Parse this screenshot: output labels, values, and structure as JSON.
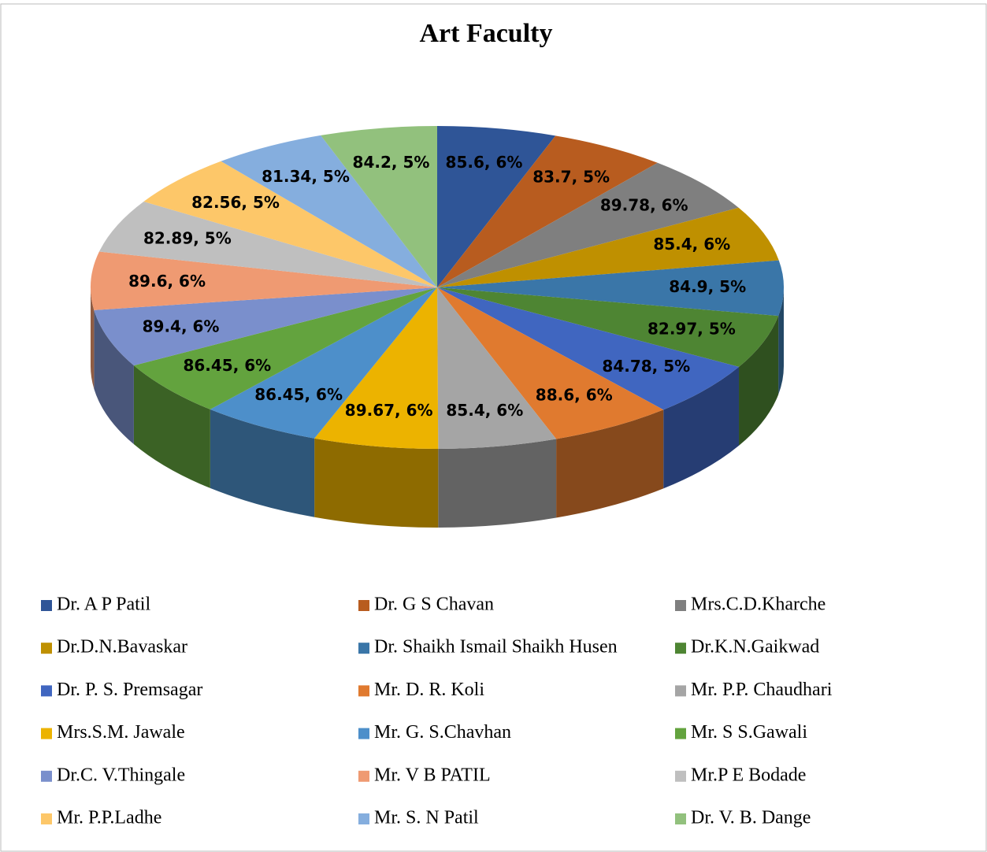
{
  "chart_data": {
    "type": "pie3d",
    "title": "Art Faculty",
    "categories": [
      "Dr. A P Patil",
      "Dr. G S Chavan",
      "Mrs.C.D.Kharche",
      "Dr.D.N.Bavaskar",
      "Dr. Shaikh Ismail Shaikh Husen",
      "Dr.K.N.Gaikwad",
      "Dr. P. S. Premsagar",
      "Mr. D. R. Koli",
      "Mr. P.P. Chaudhari",
      "Mrs.S.M. Jawale",
      "Mr. G. S.Chavhan",
      "Mr. S S.Gawali",
      "Dr.C. V.Thingale",
      "Mr. V B PATIL",
      "Mr.P E Bodade",
      "Mr. P.P.Ladhe",
      "Mr. S. N Patil",
      "Dr. V. B. Dange"
    ],
    "values": [
      85.6,
      83.7,
      89.78,
      85.4,
      84.9,
      82.97,
      84.78,
      88.6,
      85.4,
      89.67,
      86.45,
      86.45,
      89.4,
      89.6,
      82.89,
      82.56,
      81.34,
      84.2
    ],
    "value_labels": [
      "85.6, 6%",
      "83.7, 5%",
      "89.78, 6%",
      "85.4, 6%",
      "84.9, 5%",
      "82.97, 5%",
      "84.78, 5%",
      "88.6, 6%",
      "85.4, 6%",
      "89.67, 6%",
      "86.45, 6%",
      "86.45, 6%",
      "89.4, 6%",
      "89.6, 6%",
      "82.89, 5%",
      "82.56, 5%",
      "81.34, 5%",
      "84.2, 5%"
    ],
    "colors": [
      "#2f5597",
      "#b85c1f",
      "#7f7f7f",
      "#bf9000",
      "#3a76a8",
      "#4e8533",
      "#4066c0",
      "#e07a2f",
      "#a5a5a5",
      "#ecb300",
      "#4d8fca",
      "#63a33e",
      "#7a8fcc",
      "#ef9a72",
      "#bfbfbf",
      "#fdc769",
      "#85aede",
      "#92c17d"
    ],
    "legend": "bottom"
  }
}
